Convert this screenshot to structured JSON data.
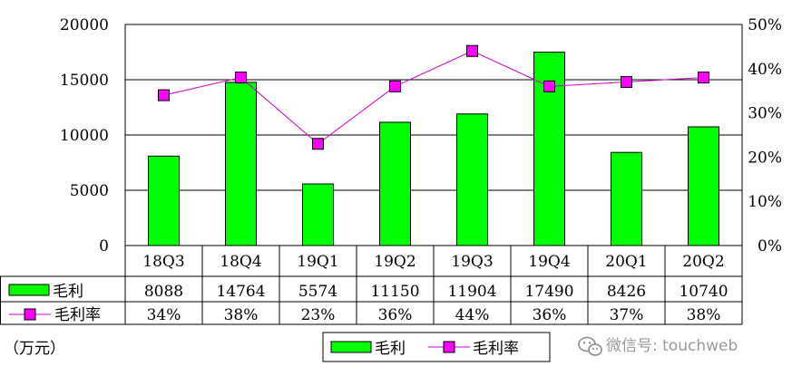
{
  "chart_data": {
    "type": "bar",
    "categories": [
      "18Q3",
      "18Q4",
      "19Q1",
      "19Q2",
      "19Q3",
      "19Q4",
      "20Q1",
      "20Q2"
    ],
    "series": [
      {
        "name": "毛利",
        "type": "bar",
        "axis": "left",
        "color": "#00ff00",
        "values": [
          8088,
          14764,
          5574,
          11150,
          11904,
          17490,
          8426,
          10740
        ],
        "table_labels": [
          "8088",
          "14764",
          "5574",
          "11150",
          "11904",
          "17490",
          "8426",
          "10740"
        ]
      },
      {
        "name": "毛利率",
        "type": "line",
        "axis": "right",
        "color": "#ff00ff",
        "values": [
          34,
          38,
          23,
          36,
          44,
          36,
          37,
          38
        ],
        "table_labels": [
          "34%",
          "38%",
          "23%",
          "36%",
          "44%",
          "36%",
          "37%",
          "38%"
        ]
      }
    ],
    "ylim": [
      0,
      20000
    ],
    "y2lim": [
      0,
      50
    ],
    "yticks": [
      "0",
      "5000",
      "10000",
      "15000",
      "20000"
    ],
    "y2ticks": [
      "0%",
      "10%",
      "20%",
      "30%",
      "40%",
      "50%"
    ],
    "unit_label": "（万元）",
    "grid": true,
    "legend_position": "bottom-center",
    "data_table": true
  },
  "watermark": {
    "text": "微信号: touchweb"
  }
}
